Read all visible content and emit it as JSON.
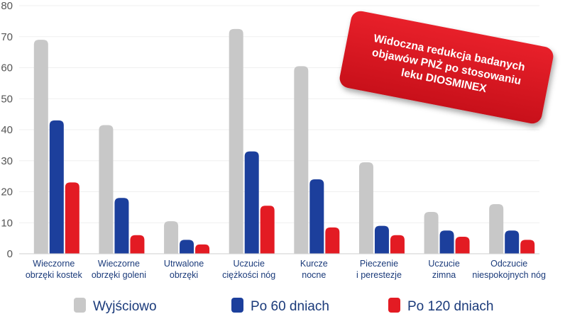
{
  "chart_data": {
    "type": "bar",
    "title": "",
    "xlabel": "",
    "ylabel": "",
    "ylim": [
      0,
      80
    ],
    "yticks": [
      0,
      10,
      20,
      30,
      40,
      50,
      60,
      70,
      80
    ],
    "grid": false,
    "legend_position": "bottom",
    "categories": [
      [
        "Wieczorne",
        "obrzęki kostek"
      ],
      [
        "Wieczorne",
        "obrzęki goleni"
      ],
      [
        "Utrwalone",
        "obrzęki"
      ],
      [
        "Uczucie",
        "ciężkości nóg"
      ],
      [
        "Kurcze",
        "nocne"
      ],
      [
        "Pieczenie",
        "i perestezje"
      ],
      [
        "Uczucie",
        "zimna"
      ],
      [
        "Odczucie",
        "niespokojnych nóg"
      ]
    ],
    "series": [
      {
        "name": "Wyjściowo",
        "color": "#c8c8c8",
        "values": [
          69,
          41.5,
          10.5,
          72.5,
          60.5,
          29.5,
          13.5,
          16
        ]
      },
      {
        "name": "Po 60 dniach",
        "color": "#1c3f9c",
        "values": [
          43,
          18,
          4.5,
          33,
          24,
          9,
          7.5,
          7.5
        ]
      },
      {
        "name": "Po 120 dniach",
        "color": "#e31b23",
        "values": [
          23,
          6,
          3,
          15.5,
          8.5,
          6,
          5.5,
          4.5
        ]
      }
    ]
  },
  "badge": {
    "lines": [
      "Widoczna redukcja badanych",
      "objawów PNŻ po stosowaniu",
      "leku DIOSMINEX"
    ]
  }
}
